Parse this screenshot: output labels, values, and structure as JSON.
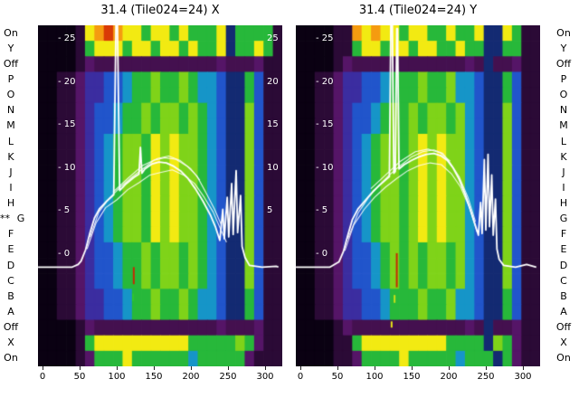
{
  "starred_row": {
    "index": 12,
    "marker": "**"
  },
  "palette": {
    "k": "#0a0112",
    "d": "#2b0a36",
    "m": "#44104f",
    "p": "#551567",
    "v": "#3b2da0",
    "b": "#2155cb",
    "t": "#1695c8",
    "g": "#27b83a",
    "G": "#7fd319",
    "y": "#f2ea12",
    "o": "#f59b10",
    "r": "#d93a06",
    "n": "#132a72",
    "w": "#ffffff"
  },
  "chart_data": {
    "type": "heatmap",
    "description": "Two spectrogram-style heatmaps with overlaid white bandpass traces",
    "row_labels": [
      "On",
      "Y",
      "Off",
      "P",
      "O",
      "N",
      "M",
      "L",
      "K",
      "J",
      "I",
      "H",
      "G",
      "F",
      "E",
      "D",
      "C",
      "B",
      "A",
      "Off",
      "X",
      "On"
    ],
    "axes": {
      "x_ticks": [
        0,
        50,
        100,
        150,
        200,
        250,
        300
      ],
      "x_range": [
        0,
        318
      ],
      "y_ticks": [
        25,
        20,
        15,
        10,
        5,
        0
      ],
      "y_tick_prefix": "-",
      "right_edge_ticks": [
        25,
        20,
        15,
        10,
        5
      ]
    },
    "panels": [
      {
        "title": "31.4 (Tile024=24) X",
        "matrix": [
          "kkkkd yoroy ygyyg ygggy ngggg d",
          "kkkkd gyyyg yygyy gyggy nggyg d",
          "kkkkd pmmmm mmmmm mmmmp mmmpd d",
          "kkddp vvbbt ggGgg Ggttb nngbd d",
          "kkddp vvbbt ggGgg Ggttb nngbd d",
          "kkddp vbbtg gGgGG gGgtb nnGbd d",
          "kkddp vbbtg gGgGG gGgtb nnGbd d",
          "kkddp vbtgG GgyGy GGgtb nnGbd d",
          "kkddp vbtgG GgyGy GGgtb nnGbd d",
          "kkddp vbtgG GgyGy GGgtb nnGbd d",
          "kkddp vbtgG GgyGy GGgtb nnGbd d",
          "kkddp vbtgG GgyGy GGgtb nnGbd d",
          "kkddp vbtgG GgyGy GGgtb nnGbd d",
          "kkddp vbtgG GgyGy GGgtb nnGbd d",
          "kkddp vbbtg gGgGG gGgtb nnGbd d",
          "kkddp vbbtg gGgGG gGgtb nnGbd d",
          "kkddp vbbtg gGgGG gGgtb nnGbd d",
          "kkddp vvbbt ggGgg Ggttb nngbd d",
          "kkddp vvbbt ggGgg Ggttb nngbd d",
          "kkkkd pmmmm mmmmm mmmmp mmmpd d",
          "kkkkd gyyyy yyyyy ygggg gGgpd d",
          "kkkkd pgggy ggggg gtggg ggpdd d"
        ],
        "trace": [
          [
            -6,
            -1.5
          ],
          [
            40,
            -1.5
          ],
          [
            48,
            -1.2
          ],
          [
            52,
            -0.8
          ],
          [
            58,
            0.5
          ],
          [
            64,
            2.5
          ],
          [
            70,
            4.2
          ],
          [
            77,
            5.3
          ],
          [
            87,
            6.2
          ],
          [
            96,
            6.9
          ],
          [
            99,
            26.8
          ],
          [
            101,
            26.8
          ],
          [
            104,
            7.4
          ],
          [
            113,
            8.2
          ],
          [
            123,
            8.9
          ],
          [
            130,
            9.3
          ],
          [
            132,
            12.4
          ],
          [
            134,
            9.4
          ],
          [
            138,
            9.9
          ],
          [
            148,
            10.5
          ],
          [
            157,
            10.7
          ],
          [
            167,
            10.6
          ],
          [
            177,
            10.2
          ],
          [
            187,
            9.6
          ],
          [
            196,
            8.8
          ],
          [
            206,
            7.6
          ],
          [
            216,
            6.2
          ],
          [
            226,
            4.6
          ],
          [
            233,
            3.2
          ],
          [
            239,
            1.6
          ],
          [
            243,
            5.2
          ],
          [
            245,
            1.8
          ],
          [
            249,
            6.6
          ],
          [
            251,
            2.0
          ],
          [
            255,
            8.2
          ],
          [
            257,
            2.3
          ],
          [
            261,
            9.7
          ],
          [
            263,
            2.5
          ],
          [
            267,
            6.8
          ],
          [
            269,
            0.9
          ],
          [
            273,
            -0.4
          ],
          [
            279,
            -1.3
          ],
          [
            296,
            -1.5
          ],
          [
            315,
            -1.4
          ],
          [
            318,
            -1.5
          ]
        ],
        "bundle": [
          [
            [
              60,
              0.6
            ],
            [
              72,
              3.6
            ],
            [
              85,
              5.4
            ],
            [
              100,
              6.3
            ],
            [
              115,
              7.5
            ],
            [
              130,
              8.3
            ],
            [
              145,
              9.2
            ],
            [
              160,
              9.5
            ],
            [
              175,
              9.8
            ],
            [
              190,
              9.2
            ],
            [
              205,
              8.2
            ],
            [
              218,
              6.6
            ],
            [
              230,
              4.9
            ],
            [
              240,
              2.9
            ],
            [
              248,
              1.4
            ]
          ],
          [
            [
              64,
              2.0
            ],
            [
              76,
              4.9
            ],
            [
              90,
              6.5
            ],
            [
              105,
              7.8
            ],
            [
              120,
              8.9
            ],
            [
              135,
              9.9
            ],
            [
              150,
              10.9
            ],
            [
              165,
              11.2
            ],
            [
              180,
              11.0
            ],
            [
              195,
              10.2
            ],
            [
              208,
              9.1
            ],
            [
              220,
              7.2
            ],
            [
              232,
              5.2
            ],
            [
              241,
              3.4
            ]
          ],
          [
            [
              95,
              7.2
            ],
            [
              115,
              8.8
            ],
            [
              135,
              10.3
            ],
            [
              155,
              11.1
            ],
            [
              170,
              11.4
            ],
            [
              185,
              10.9
            ],
            [
              200,
              9.9
            ],
            [
              212,
              8.6
            ]
          ]
        ],
        "markers": [
          {
            "x": 123,
            "r0": 15.6,
            "r1": 16.7,
            "c": "#c62a04"
          },
          {
            "x": 122,
            "r0": 17.3,
            "r1": 17.8,
            "c": "#2fc42f"
          }
        ]
      },
      {
        "title": "31.4 (Tile024=24) Y",
        "matrix": [
          "kkkkd doyoy ygyyg gyggy nnygd d",
          "kkkkd dgyyg yygyy ggygg nnggd d",
          "kkkkd pmmmm mmmmm mmmpm nmmpd d",
          "kkddp vvbbt gggGg gGttb nngbd d",
          "kkddp vvbbt gggGg gGttb nngbd d",
          "kkddp vbbtg GgGgG GgGtb nnGbd d",
          "kkddp vbbtg GgGgG GgGtb nnGbd d",
          "kkddp vbtgG GgGyG yGGtb nnGbd d",
          "kkddp vbtgG GgGyG yGGtb nnGbd d",
          "kkddp vbtgG GgGyG yGGtb nnGbd d",
          "kkddp vbtgG GgGyG yGGtb nnGbd d",
          "kkddp vbtgG GgGyG yGGtb nnGbd d",
          "kkddp vbtgG GgGyG yGGtb nnGbd d",
          "kkddp vbtgG GgGyG yGGtb nnGbd d",
          "kkddp vbbtg GgGgG GgGtb nnGbd d",
          "kkddp vbbtg GgGgG GgGtb nnGbd d",
          "kkddp vbbtg GgGgG GgGtb nnGbd d",
          "kkddp vvbbt gggGg gGttb nngbd d",
          "kkddp vvbbt gggGg gGttb nngbd d",
          "kkkkd pmmmm mmmmm mmmpm nmmpd d",
          "kkkkd dgyyy yyyyy ygggg nGgpd d",
          "kkkkd dpggg gyggg ggtgg gngpd d"
        ],
        "trace": [
          [
            -6,
            -1.5
          ],
          [
            40,
            -1.5
          ],
          [
            52,
            -0.9
          ],
          [
            58,
            0.3
          ],
          [
            64,
            2.2
          ],
          [
            70,
            4.0
          ],
          [
            78,
            5.3
          ],
          [
            88,
            6.3
          ],
          [
            98,
            7.3
          ],
          [
            108,
            8.1
          ],
          [
            116,
            8.7
          ],
          [
            120,
            9.0
          ],
          [
            122,
            26.8
          ],
          [
            124,
            26.8
          ],
          [
            126,
            9.4
          ],
          [
            128,
            9.6
          ],
          [
            130,
            26.2
          ],
          [
            131,
            26.2
          ],
          [
            133,
            9.9
          ],
          [
            140,
            10.4
          ],
          [
            150,
            10.9
          ],
          [
            160,
            11.3
          ],
          [
            170,
            11.6
          ],
          [
            180,
            11.7
          ],
          [
            190,
            11.4
          ],
          [
            198,
            10.9
          ],
          [
            206,
            10.0
          ],
          [
            214,
            8.7
          ],
          [
            222,
            7.0
          ],
          [
            229,
            5.2
          ],
          [
            235,
            3.6
          ],
          [
            240,
            2.2
          ],
          [
            243,
            6.0
          ],
          [
            245,
            2.4
          ],
          [
            248,
            11.0
          ],
          [
            250,
            2.8
          ],
          [
            253,
            11.6
          ],
          [
            255,
            3.2
          ],
          [
            258,
            9.2
          ],
          [
            260,
            2.2
          ],
          [
            263,
            6.4
          ],
          [
            265,
            0.6
          ],
          [
            268,
            -0.6
          ],
          [
            274,
            -1.3
          ],
          [
            290,
            -1.5
          ],
          [
            305,
            -1.2
          ],
          [
            318,
            -1.5
          ]
        ],
        "bundle": [
          [
            [
              60,
              0.4
            ],
            [
              72,
              3.4
            ],
            [
              86,
              5.2
            ],
            [
              100,
              6.6
            ],
            [
              115,
              7.8
            ],
            [
              130,
              8.8
            ],
            [
              145,
              9.7
            ],
            [
              160,
              10.3
            ],
            [
              175,
              10.6
            ],
            [
              190,
              10.4
            ],
            [
              204,
              9.3
            ],
            [
              216,
              7.8
            ],
            [
              228,
              5.4
            ],
            [
              238,
              2.6
            ]
          ],
          [
            [
              64,
              1.8
            ],
            [
              78,
              4.8
            ],
            [
              92,
              6.6
            ],
            [
              106,
              8.0
            ],
            [
              120,
              9.2
            ],
            [
              135,
              10.3
            ],
            [
              150,
              11.3
            ],
            [
              165,
              11.9
            ],
            [
              180,
              12.1
            ],
            [
              192,
              11.7
            ],
            [
              202,
              10.6
            ],
            [
              214,
              9.0
            ],
            [
              226,
              6.6
            ],
            [
              236,
              3.8
            ]
          ],
          [
            [
              95,
              7.6
            ],
            [
              115,
              9.2
            ],
            [
              135,
              10.8
            ],
            [
              155,
              11.9
            ],
            [
              172,
              12.2
            ],
            [
              188,
              11.8
            ],
            [
              202,
              10.8
            ]
          ]
        ],
        "markers": [
          {
            "x": 130,
            "r0": 14.7,
            "r1": 16.9,
            "c": "#c62a04"
          },
          {
            "x": 127,
            "r0": 17.4,
            "r1": 17.9,
            "c": "#c8e018"
          },
          {
            "x": 123,
            "r0": 19.1,
            "r1": 19.5,
            "c": "#e8e515"
          }
        ]
      }
    ]
  }
}
